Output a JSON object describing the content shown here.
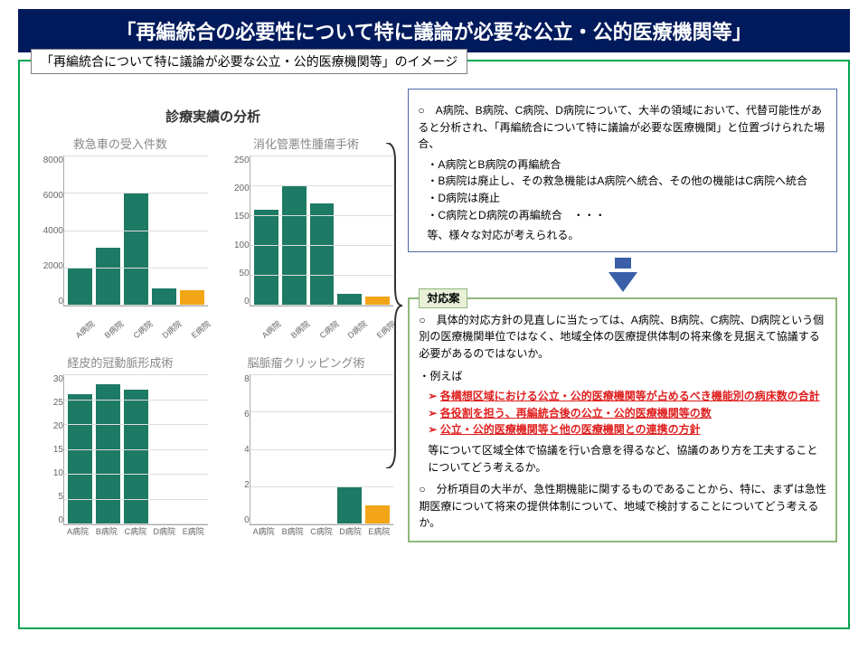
{
  "title": "「再編統合の必要性について特に議論が必要な公立・公的医療機関等」",
  "subtitle": "「再編統合について特に議論が必要な公立・公的医療機関等」のイメージ",
  "analysis_title": "診療実績の分析",
  "colors": {
    "bar_default": "#1d7a64",
    "bar_highlight": "#f2a516",
    "title_bg": "#001a5c",
    "outer_border": "#00a650",
    "info_border": "#4a6aa8",
    "response_border": "#8fb87a",
    "red": "#e02020"
  },
  "charts": [
    {
      "title": "救急車の受入件数",
      "ymax": 8000,
      "ytick": 2000,
      "categories": [
        "A病院",
        "B病院",
        "C病院",
        "D病院",
        "E病院"
      ],
      "values": [
        2000,
        3100,
        6000,
        900,
        800
      ],
      "highlight_index": 4,
      "x_rotated": true
    },
    {
      "title": "消化管悪性腫瘍手術",
      "ymax": 250,
      "ytick": 50,
      "categories": [
        "A病院",
        "B病院",
        "C病院",
        "D病院",
        "E病院"
      ],
      "values": [
        160,
        200,
        170,
        20,
        15
      ],
      "highlight_index": 4,
      "x_rotated": true
    },
    {
      "title": "経皮的冠動脈形成術",
      "ymax": 30,
      "ytick": 5,
      "categories": [
        "A病院",
        "B病院",
        "C病院",
        "D病院",
        "E病院"
      ],
      "values": [
        26,
        28,
        27,
        0,
        0
      ],
      "highlight_index": 4,
      "x_rotated": false
    },
    {
      "title": "脳脈瘤クリッピング術",
      "ymax": 8,
      "ytick": 2,
      "categories": [
        "A病院",
        "B病院",
        "C病院",
        "D病院",
        "E病院"
      ],
      "values": [
        0,
        0,
        0,
        2,
        1
      ],
      "highlight_index": 4,
      "x_rotated": false
    }
  ],
  "info_box": {
    "intro": "A病院、B病院、C病院、D病院について、大半の領域において、代替可能性があると分析され、「再編統合について特に議論が必要な医療機関」と位置づけられた場合、",
    "items": [
      "A病院とB病院の再編統合",
      "B病院は廃止し、その救急機能はA病院へ統合、その他の機能はC病院へ統合",
      "D病院は廃止",
      "C病院とD病院の再編統合　・・・"
    ],
    "outro": "等、様々な対応が考えられる。"
  },
  "response": {
    "label": "対応案",
    "para1": "具体的対応方針の見直しに当たっては、A病院、B病院、C病院、D病院という個別の医療機関単位ではなく、地域全体の医療提供体制の将来像を見据えて協議する必要があるのではないか。",
    "example_lead": "・例えば",
    "red_items": [
      "各構想区域における公立・公的医療機関等が占めるべき機能別の病床数の合計",
      "各役割を担う、再編統合後の公立・公的医療機関等の数",
      "公立・公的医療機関等と他の医療機関との連携の方針"
    ],
    "para2_tail": "等について区域全体で協議を行い合意を得るなど、協議のあり方を工夫することについてどう考えるか。",
    "para3": "分析項目の大半が、急性期機能に関するものであることから、特に、まずは急性期医療について将来の提供体制について、地域で検討することについてどう考えるか。"
  }
}
